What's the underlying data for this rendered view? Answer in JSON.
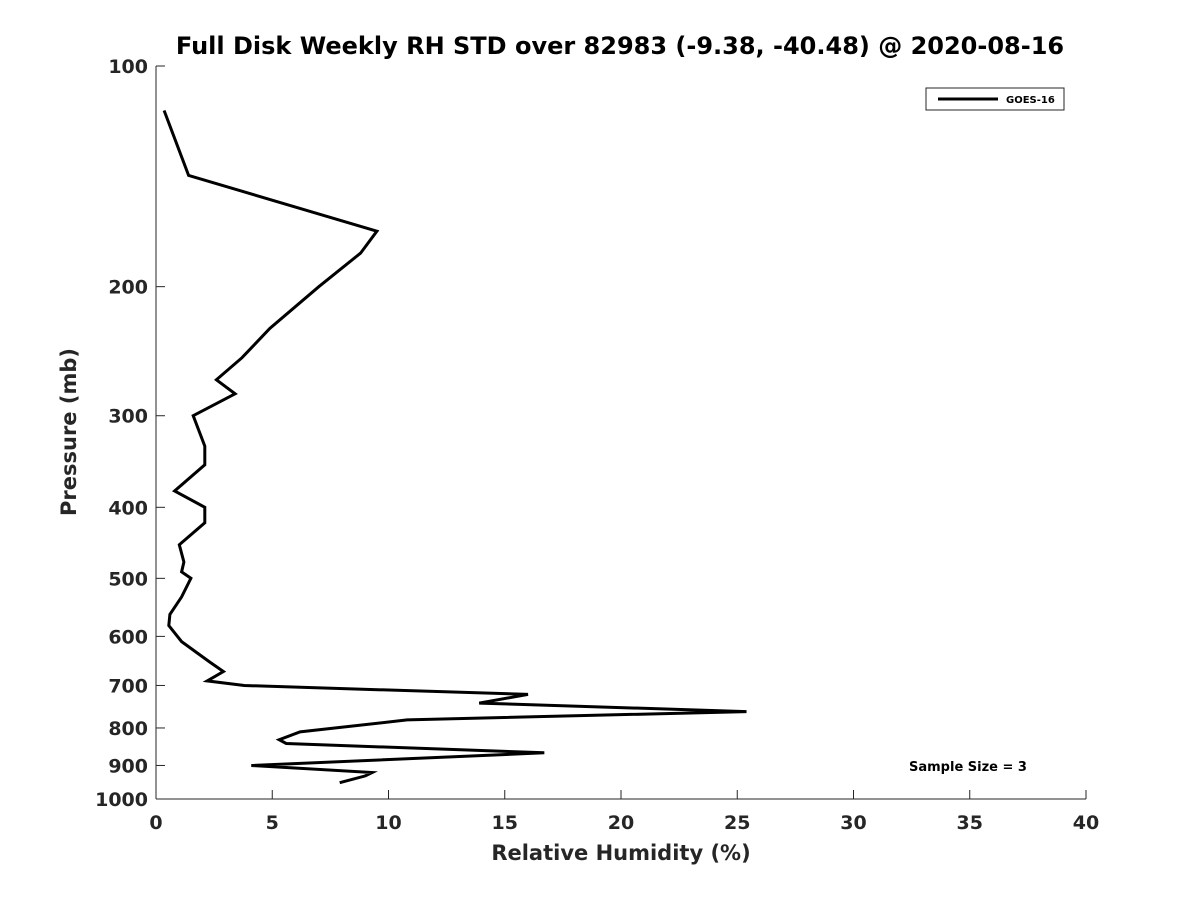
{
  "chart_data": {
    "type": "line",
    "title": "Full Disk Weekly RH STD over 82983 (-9.38, -40.48) @ 2020-08-16",
    "xlabel": "Relative Humidity (%)",
    "ylabel": "Pressure (mb)",
    "xlim": [
      0,
      40
    ],
    "ylim": [
      100,
      1000
    ],
    "y_scale": "log",
    "y_reversed": true,
    "x_ticks": [
      "0",
      "5",
      "10",
      "15",
      "20",
      "25",
      "30",
      "35",
      "40"
    ],
    "y_ticks": [
      "100",
      "200",
      "300",
      "400",
      "500",
      "600",
      "700",
      "800",
      "900",
      "1000"
    ],
    "grid": false,
    "legend_position": "top-right",
    "annotation": "Sample Size = 3",
    "series": [
      {
        "name": "GOES-16",
        "color": "#000000",
        "x": [
          0.35,
          1.4,
          9.5,
          8.8,
          7.0,
          4.9,
          3.7,
          2.6,
          3.4,
          1.6,
          2.1,
          2.1,
          0.8,
          2.1,
          2.1,
          1.0,
          1.2,
          1.1,
          1.5,
          1.1,
          0.6,
          0.55,
          1.1,
          2.3,
          2.9,
          2.2,
          3.8,
          16.0,
          13.9,
          25.4,
          10.8,
          6.2,
          5.3,
          5.6,
          16.7,
          4.1,
          9.3,
          9.0,
          7.9
        ],
        "y": [
          115,
          141,
          168,
          180,
          200,
          228,
          250,
          268,
          280,
          300,
          330,
          350,
          380,
          400,
          420,
          450,
          475,
          490,
          500,
          530,
          560,
          580,
          610,
          650,
          670,
          690,
          700,
          720,
          740,
          760,
          780,
          810,
          830,
          840,
          865,
          900,
          920,
          930,
          950
        ]
      }
    ]
  }
}
